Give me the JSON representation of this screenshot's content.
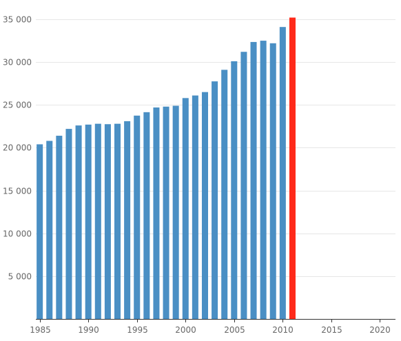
{
  "chart_data": {
    "type": "bar",
    "title": "",
    "xlabel": "",
    "ylabel": "",
    "xlim": [
      1984.6,
      2021.6
    ],
    "ylim": [
      0,
      35000
    ],
    "grid": true,
    "legend": "none",
    "x_ticks": [
      1985,
      1990,
      1995,
      2000,
      2005,
      2010,
      2015,
      2020
    ],
    "x_tick_labels": [
      "1985",
      "1990",
      "1995",
      "2000",
      "2005",
      "2010",
      "2015",
      "2020"
    ],
    "y_ticks": [
      5000,
      10000,
      15000,
      20000,
      25000,
      30000,
      35000
    ],
    "y_tick_labels": [
      "5 000",
      "10 000",
      "15 000",
      "20 000",
      "25 000",
      "30 000",
      "35 000"
    ],
    "bar_color": "#4a8fc4",
    "highlight_color": "#ff2a1a",
    "highlight_x": [
      2011
    ],
    "x": [
      1985,
      1986,
      1987,
      1988,
      1989,
      1990,
      1991,
      1992,
      1993,
      1994,
      1995,
      1996,
      1997,
      1998,
      1999,
      2000,
      2001,
      2002,
      2003,
      2004,
      2005,
      2006,
      2007,
      2008,
      2009,
      2010,
      2011
    ],
    "values": [
      20400,
      20800,
      21400,
      22200,
      22600,
      22700,
      22800,
      22750,
      22800,
      23100,
      23750,
      24150,
      24700,
      24800,
      24900,
      25800,
      26100,
      26500,
      27750,
      29100,
      30100,
      31200,
      32350,
      32500,
      32200,
      34100,
      35200
    ]
  }
}
